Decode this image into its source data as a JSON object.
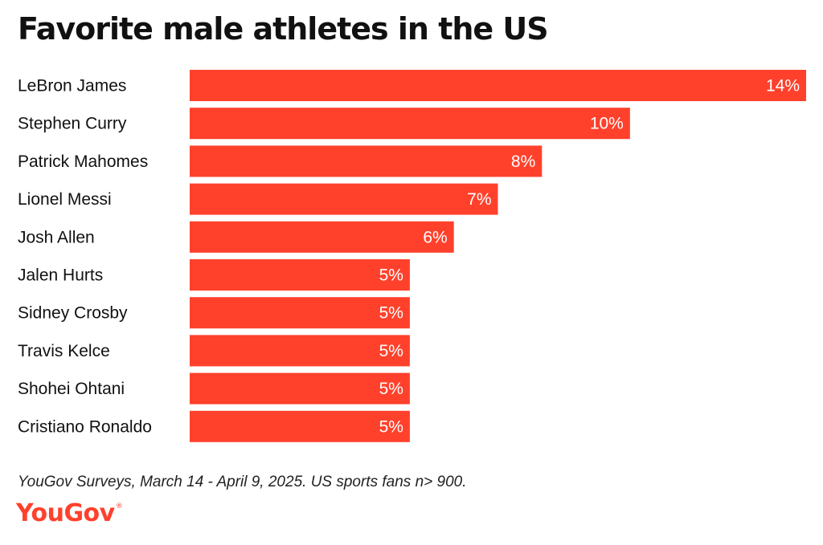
{
  "chart_data": {
    "type": "bar",
    "orientation": "horizontal",
    "title": "Favorite male athletes in the US",
    "categories": [
      "LeBron James",
      "Stephen Curry",
      "Patrick Mahomes",
      "Lionel Messi",
      "Josh Allen",
      "Jalen Hurts",
      "Sidney Crosby",
      "Travis Kelce",
      "Shohei Ohtani",
      "Cristiano Ronaldo"
    ],
    "values": [
      14,
      10,
      8,
      7,
      6,
      5,
      5,
      5,
      5,
      5
    ],
    "value_labels": [
      "14%",
      "10%",
      "8%",
      "7%",
      "6%",
      "5%",
      "5%",
      "5%",
      "5%",
      "5%"
    ],
    "unit": "%",
    "xlim": [
      0,
      14
    ],
    "xlabel": "",
    "ylabel": "",
    "grid": false,
    "legend": "none"
  },
  "colors": {
    "bar": "#ff412c",
    "bar_label": "#ffffff",
    "text": "#111111",
    "brand": "#ff412c"
  },
  "footer": {
    "source": "YouGov Surveys, March 14 - April 9, 2025. US sports fans n> 900.",
    "logo": "YouGov"
  }
}
